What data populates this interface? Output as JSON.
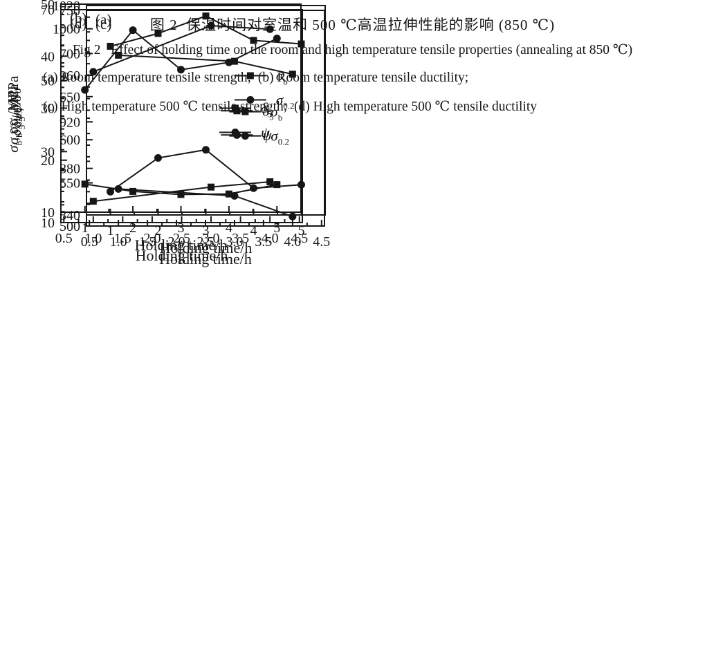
{
  "colors": {
    "ink": "#161616",
    "background": "#ffffff"
  },
  "caption": {
    "zh": "图 2  保温时间对室温和 500 ℃高温拉伸性能的影响 (850 ℃)",
    "en": "Fig 2   Effect of holding time on the room and high temperature tensile properties (annealing at 850 ℃)",
    "line_a_b": "(a) Room temperature tensile strength;  (b) Room temperature tensile ductility;",
    "line_c_d": "(c) High temperature 500 ℃ tensile strength;  (d) High temperature 500 ℃ tensile ductility"
  },
  "chart_data": [
    {
      "id": "a",
      "type": "line",
      "panel_label": "(a)",
      "xlabel": "Holding time/h",
      "ylabel_parts": [
        {
          "t": "σ",
          "it": true
        },
        {
          "t": "b",
          "sub": true
        },
        {
          "t": ", "
        },
        {
          "t": "σ",
          "it": true
        },
        {
          "t": "0.2",
          "sub": true
        },
        {
          "t": "/MPa"
        }
      ],
      "xlim": [
        0.5,
        5.5
      ],
      "ylim": [
        840,
        1020
      ],
      "xtick_vals": [
        1,
        2,
        3,
        4,
        5
      ],
      "xtick_labels": [
        "1",
        "2",
        "3",
        "4",
        "5"
      ],
      "xminor": [
        1.5,
        2.5,
        3.5,
        4.5
      ],
      "ytick_vals": [
        840,
        880,
        920,
        960,
        1000,
        1020
      ],
      "ytick_labels": [
        "840",
        "880",
        "920",
        "960",
        "1000",
        "1020"
      ],
      "yminor": [
        850,
        860,
        870,
        890,
        900,
        910,
        930,
        940,
        950,
        970,
        980,
        990,
        1010
      ],
      "legend": {
        "fx": 0.62,
        "fy": 0.335
      },
      "grid": false,
      "series": [
        {
          "name": "sigma-b",
          "marker": "square",
          "label": {
            "base": "σ",
            "sub": "b"
          },
          "x": [
            1,
            2,
            3,
            4,
            5
          ],
          "y": [
            985,
            996,
            1011,
            990,
            987
          ]
        },
        {
          "name": "sigma-02",
          "marker": "circle",
          "label": {
            "base": "σ",
            "sub": "0.2"
          },
          "x": [
            1,
            2,
            3,
            4,
            5
          ],
          "y": [
            860,
            889,
            896,
            863,
            866
          ]
        }
      ]
    },
    {
      "id": "b",
      "type": "line",
      "panel_label": "(b)",
      "xlabel": "Holding time/h",
      "ylabel_parts": [
        {
          "t": "δ",
          "it": true
        },
        {
          "t": "5",
          "sub": true
        },
        {
          "t": " "
        },
        {
          "t": "ψ",
          "it": true
        },
        {
          "t": "/%"
        }
      ],
      "xlim": [
        0.5,
        5.5
      ],
      "ylim": [
        10,
        50
      ],
      "xtick_vals": [
        1,
        2,
        3,
        4,
        5
      ],
      "xtick_labels": [
        "1",
        "2",
        "3",
        "4",
        "5"
      ],
      "xminor": [
        1.5,
        2.5,
        3.5,
        4.5
      ],
      "ytick_vals": [
        10,
        20,
        30,
        40,
        50
      ],
      "ytick_labels": [
        "10",
        "20",
        "30",
        "40",
        "50"
      ],
      "yminor": [
        12,
        14,
        16,
        18,
        22,
        24,
        26,
        28,
        32,
        34,
        36,
        38,
        42,
        44,
        46,
        48
      ],
      "legend": {
        "fx": 0.66,
        "fy": 0.5
      },
      "grid": false,
      "series": [
        {
          "name": "delta-5",
          "marker": "square",
          "label": {
            "base": "δ",
            "sub": "5"
          },
          "x": [
            1,
            2,
            3,
            4,
            5
          ],
          "y": [
            15.4,
            14.0,
            13.4,
            13.5,
            15.3
          ]
        },
        {
          "name": "psi",
          "marker": "circle",
          "label": {
            "base": "ψ",
            "sub": ""
          },
          "x": [
            1,
            2,
            3,
            4,
            5
          ],
          "y": [
            33.5,
            45.0,
            37.4,
            38.8,
            43.4
          ]
        }
      ]
    },
    {
      "id": "c",
      "type": "line",
      "panel_label": "(c)",
      "xlabel": "Holding time/h",
      "ylabel_parts": [
        {
          "t": "σ",
          "it": true
        },
        {
          "t": "b",
          "sub": true
        },
        {
          "t": ", "
        },
        {
          "t": "σ",
          "it": true
        },
        {
          "t": "0.2",
          "sub": true
        },
        {
          "t": "/MPa"
        }
      ],
      "xlim": [
        0.45,
        4.55
      ],
      "ylim": [
        500,
        750
      ],
      "xtick_vals": [
        0.5,
        1.0,
        1.5,
        2.0,
        2.5,
        3.0,
        3.5,
        4.0,
        4.5
      ],
      "xtick_labels": [
        "0.5",
        "1.0",
        "1.5",
        "2.0",
        "2.5",
        "3.0",
        "3.5",
        "4.0",
        "4.5"
      ],
      "xminor": [
        0.75,
        1.25,
        1.75,
        2.25,
        2.75,
        3.25,
        3.75,
        4.25
      ],
      "ytick_vals": [
        500,
        550,
        600,
        650,
        700,
        750
      ],
      "ytick_labels": [
        "500",
        "550",
        "600",
        "650",
        "700",
        "750"
      ],
      "yminor": [
        525,
        575,
        625,
        675,
        725
      ],
      "legend": {
        "fx": 0.6,
        "fy": 0.47
      },
      "grid": false,
      "series": [
        {
          "name": "sigma-b",
          "marker": "square",
          "label": {
            "base": "σ",
            "sub": "b"
          },
          "x": [
            1.0,
            3.0,
            4.0
          ],
          "y": [
            698,
            691,
            676
          ]
        },
        {
          "name": "sigma-02",
          "marker": "circle",
          "label": {
            "base": "σ",
            "sub": "0.2"
          },
          "x": [
            1.0,
            3.0,
            4.0
          ],
          "y": [
            543,
            535,
            511
          ]
        }
      ]
    },
    {
      "id": "d",
      "type": "line",
      "panel_label": "(d)",
      "xlabel": "Holding time/h",
      "ylabel_parts": [
        {
          "t": "δ",
          "it": true
        },
        {
          "t": "5",
          "sub": true
        },
        {
          "t": " "
        },
        {
          "t": "ψ",
          "it": true
        },
        {
          "t": "/%"
        }
      ],
      "xlim": [
        0.45,
        4.55
      ],
      "ylim": [
        10,
        70
      ],
      "xtick_vals": [
        0.5,
        1.0,
        1.5,
        2.0,
        2.5,
        3.0,
        3.5,
        4.0,
        4.5
      ],
      "xtick_labels": [
        "0.5",
        "1.0",
        "1.5",
        "2.0",
        "2.5",
        "3.0",
        "3.5",
        "4.0",
        "4.5"
      ],
      "xminor": [
        0.75,
        1.25,
        1.75,
        2.25,
        2.75,
        3.25,
        3.75,
        4.25
      ],
      "ytick_vals": [
        10,
        30,
        50,
        70
      ],
      "ytick_labels": [
        "10",
        "30",
        "50",
        "70"
      ],
      "yminor": [
        15,
        20,
        25,
        35,
        40,
        45,
        55,
        60,
        65
      ],
      "legend": {
        "fx": 0.663,
        "fy": 0.475
      },
      "grid": false,
      "series": [
        {
          "name": "delta-5",
          "marker": "square",
          "label": {
            "base": "δ",
            "sub": "5"
          },
          "x": [
            1.0,
            3.0,
            4.0
          ],
          "y": [
            16.0,
            20.0,
            21.5
          ]
        },
        {
          "name": "psi",
          "marker": "circle",
          "label": {
            "base": "ψ",
            "sub": ""
          },
          "x": [
            1.0,
            3.0,
            4.0
          ],
          "y": [
            52.5,
            65.5,
            64.5
          ]
        }
      ]
    }
  ]
}
